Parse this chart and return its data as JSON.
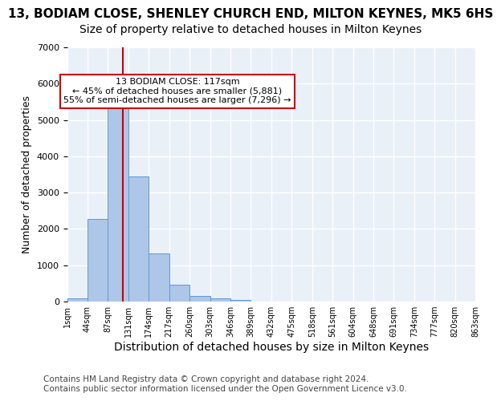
{
  "title": "13, BODIAM CLOSE, SHENLEY CHURCH END, MILTON KEYNES, MK5 6HS",
  "subtitle": "Size of property relative to detached houses in Milton Keynes",
  "xlabel": "Distribution of detached houses by size in Milton Keynes",
  "ylabel": "Number of detached properties",
  "bin_labels": [
    "1sqm",
    "44sqm",
    "87sqm",
    "131sqm",
    "174sqm",
    "217sqm",
    "260sqm",
    "303sqm",
    "346sqm",
    "389sqm",
    "432sqm",
    "475sqm",
    "518sqm",
    "561sqm",
    "604sqm",
    "648sqm",
    "691sqm",
    "734sqm",
    "777sqm",
    "820sqm",
    "863sqm"
  ],
  "bar_values": [
    80,
    2280,
    5480,
    3450,
    1320,
    460,
    160,
    90,
    55,
    0,
    0,
    0,
    0,
    0,
    0,
    0,
    0,
    0,
    0,
    0
  ],
  "bar_color": "#aec6e8",
  "bar_edge_color": "#5b9bd5",
  "vline_x": 2.72,
  "vline_color": "#cc0000",
  "annotation_text": "13 BODIAM CLOSE: 117sqm\n← 45% of detached houses are smaller (5,881)\n55% of semi-detached houses are larger (7,296) →",
  "annotation_box_color": "#ffffff",
  "annotation_box_edge": "#cc0000",
  "ylim": [
    0,
    7000
  ],
  "yticks": [
    0,
    1000,
    2000,
    3000,
    4000,
    5000,
    6000,
    7000
  ],
  "background_color": "#eaf0f8",
  "grid_color": "#ffffff",
  "footer": "Contains HM Land Registry data © Crown copyright and database right 2024.\nContains public sector information licensed under the Open Government Licence v3.0.",
  "title_fontsize": 11,
  "subtitle_fontsize": 10,
  "xlabel_fontsize": 10,
  "ylabel_fontsize": 9,
  "footer_fontsize": 7.5
}
